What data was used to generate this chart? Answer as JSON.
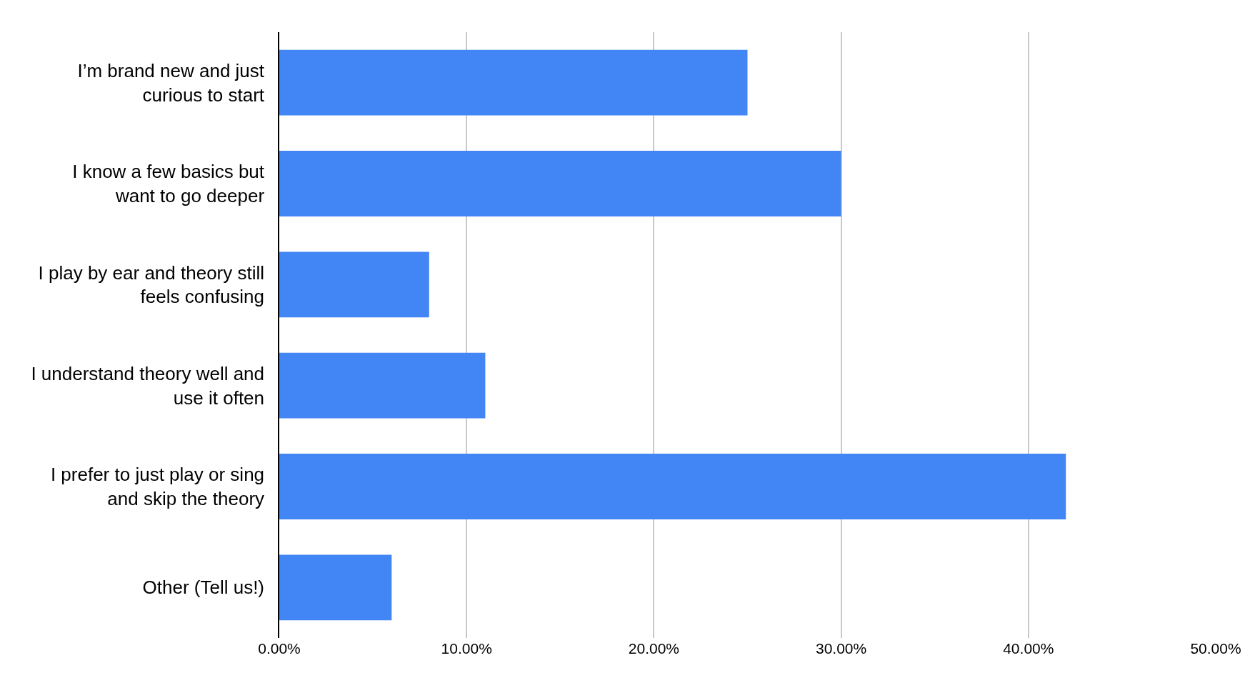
{
  "chart_data": {
    "type": "bar",
    "orientation": "horizontal",
    "categories": [
      "I’m brand new and just curious to start",
      "I know a few basics but want to go deeper",
      "I play by ear and theory still feels confusing",
      "I understand theory well and use it often",
      "I prefer to just play or sing and skip the theory",
      "Other (Tell us!)"
    ],
    "values": [
      25,
      30,
      8,
      11,
      42,
      6
    ],
    "color": "#4285f4",
    "xlim": [
      0,
      50
    ],
    "xticks": [
      {
        "value": 0,
        "label": "0.00%"
      },
      {
        "value": 10,
        "label": "10.00%"
      },
      {
        "value": 20,
        "label": "20.00%"
      },
      {
        "value": 30,
        "label": "30.00%"
      },
      {
        "value": 40,
        "label": "40.00%"
      },
      {
        "value": 50,
        "label": "50.00%"
      }
    ],
    "grid": "x",
    "legend": false
  }
}
